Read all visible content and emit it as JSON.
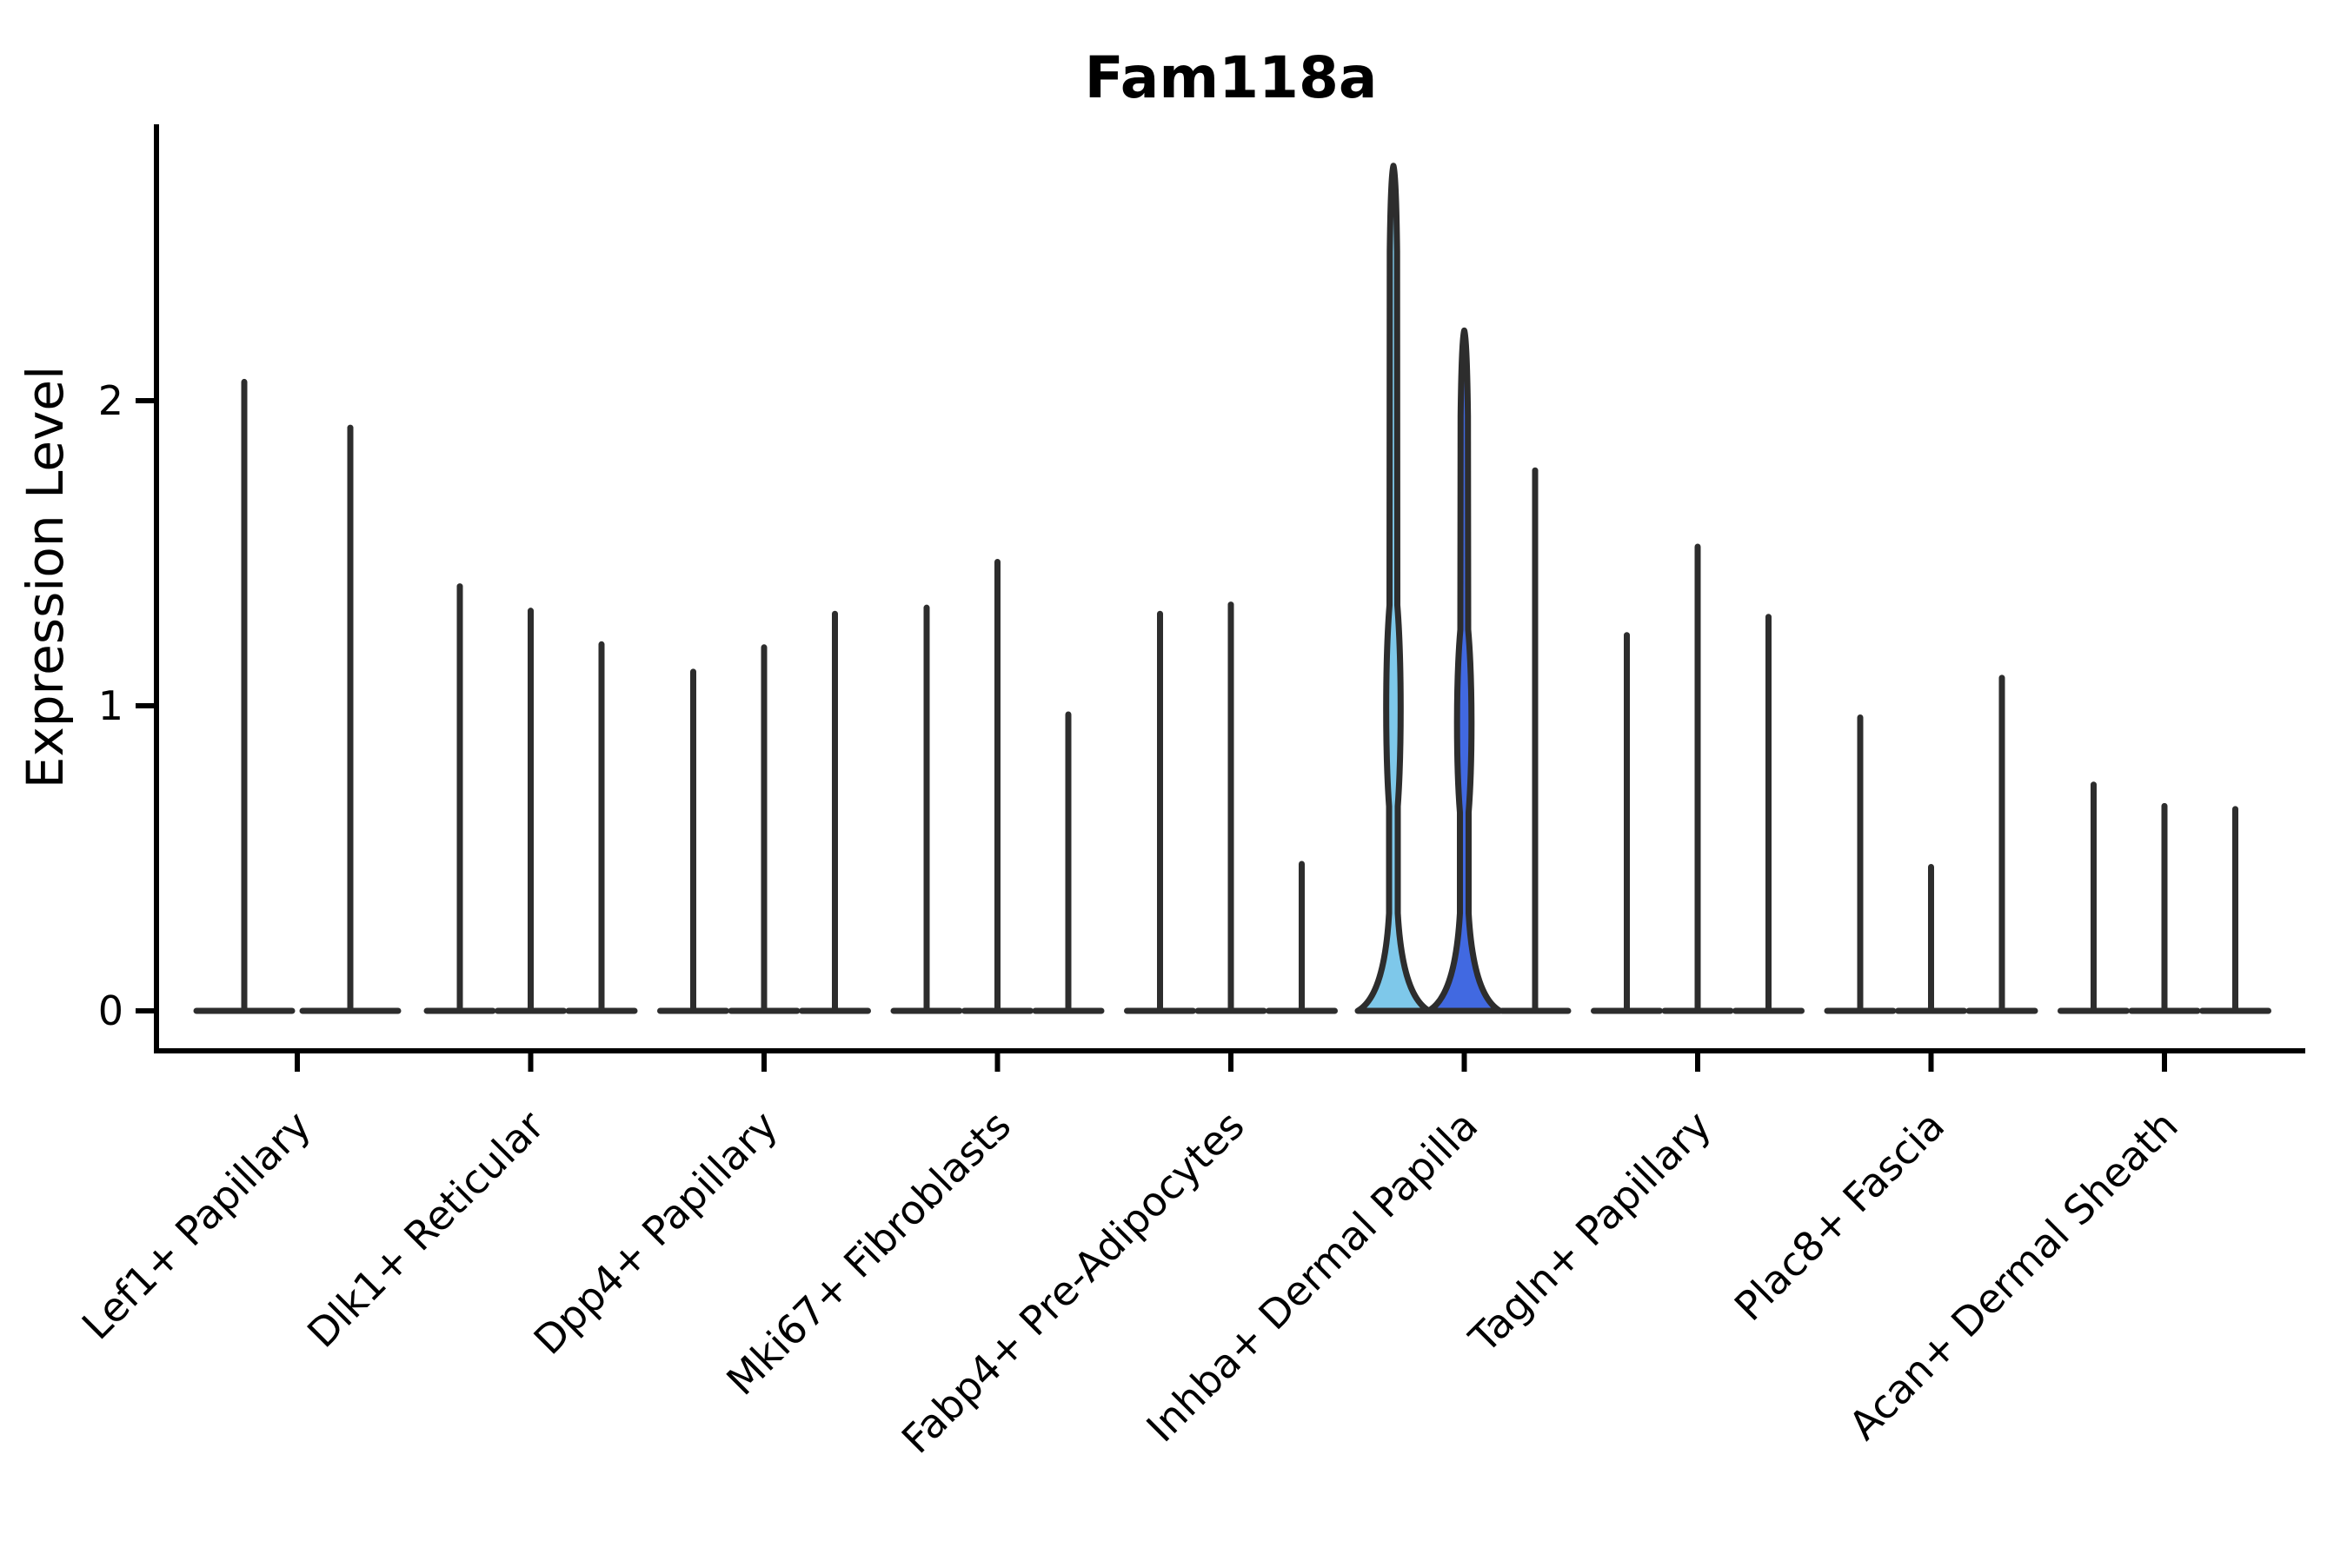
{
  "chart_data": {
    "type": "violin",
    "title": "Fam118a",
    "xlabel": "",
    "ylabel": "Expression Level",
    "yticks": [
      "0",
      "1",
      "2"
    ],
    "ytick_values": [
      0,
      1,
      2
    ],
    "ylim": [
      -0.13,
      2.9
    ],
    "grid": false,
    "legend": null,
    "categories": [
      "Lef1+ Papillary",
      "Dlk1+ Reticular",
      "Dpp4+ Papillary",
      "Mki67+ Fibroblasts",
      "Fabp4+ Pre-Adipocytes",
      "Inhba+ Dermal Papilla",
      "Tagln+ Papillary",
      "Plac8+ Fascia",
      "Acan+ Dermal Sheath"
    ],
    "description": "Violin plot of Fam118a expression per fibroblast cluster; nearly all distributions collapse to a spike at 0 with a thin line to the max expressing cell. Two violins in Inhba+ Dermal Papilla have visible mass (filled light blue and royal blue) with a bulge near expression 1.",
    "groups": [
      {
        "category": "Lef1+ Papillary",
        "violins": [
          {
            "max": 2.07
          },
          {
            "max": 1.92
          }
        ]
      },
      {
        "category": "Dlk1+ Reticular",
        "violins": [
          {
            "max": 1.4
          },
          {
            "max": 1.32
          },
          {
            "max": 1.21
          }
        ]
      },
      {
        "category": "Dpp4+ Papillary",
        "violins": [
          {
            "max": 1.12
          },
          {
            "max": 1.2
          },
          {
            "max": 1.31
          }
        ]
      },
      {
        "category": "Mki67+ Fibroblasts",
        "violins": [
          {
            "max": 1.33
          },
          {
            "max": 1.48
          },
          {
            "max": 0.98
          }
        ]
      },
      {
        "category": "Fabp4+ Pre-Adipocytes",
        "violins": [
          {
            "max": 1.31
          },
          {
            "max": 1.34
          },
          {
            "max": 0.49
          }
        ]
      },
      {
        "category": "Inhba+ Dermal Papilla",
        "violins": [
          {
            "max": 2.77,
            "fill": "#7ec8ea",
            "bulge_center": 1.0,
            "bulge_halfspan": 0.33
          },
          {
            "max": 2.23,
            "fill": "#4169e1",
            "bulge_center": 0.95,
            "bulge_halfspan": 0.3
          },
          {
            "max": 1.78
          }
        ]
      },
      {
        "category": "Tagln+ Papillary",
        "violins": [
          {
            "max": 1.24
          },
          {
            "max": 1.53
          },
          {
            "max": 1.3
          }
        ]
      },
      {
        "category": "Plac8+ Fascia",
        "violins": [
          {
            "max": 0.97
          },
          {
            "max": 0.48
          },
          {
            "max": 1.1
          }
        ]
      },
      {
        "category": "Acan+ Dermal Sheath",
        "violins": [
          {
            "max": 0.75
          },
          {
            "max": 0.68
          },
          {
            "max": 0.67
          }
        ]
      }
    ],
    "colors": {
      "outline": "#2d2d2d",
      "axis": "#000000",
      "background": "#ffffff",
      "highlight_fills": [
        "#7ec8ea",
        "#4169e1"
      ]
    }
  }
}
